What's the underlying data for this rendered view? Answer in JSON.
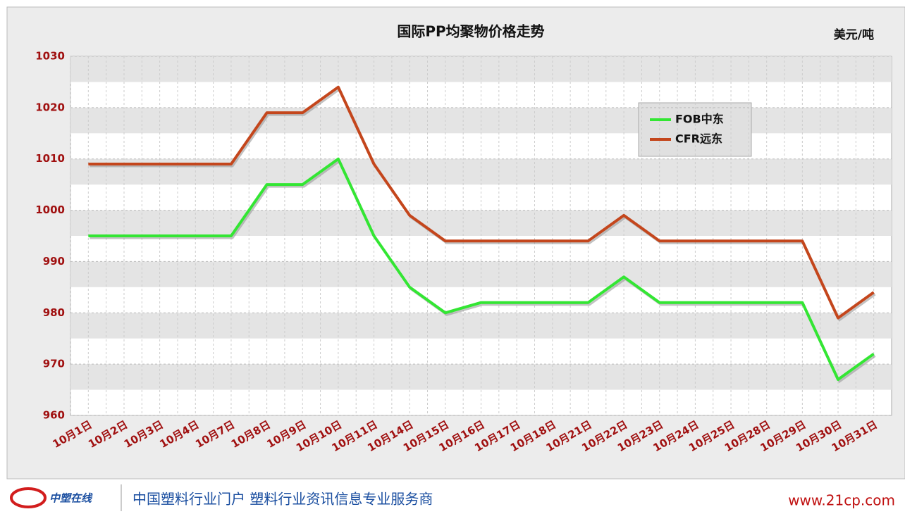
{
  "chart_data": {
    "type": "line",
    "title": "国际PP均聚物价格走势",
    "unit": "美元/吨",
    "categories": [
      "10月1日",
      "10月2日",
      "10月3日",
      "10月4日",
      "10月7日",
      "10月8日",
      "10月9日",
      "10月10日",
      "10月11日",
      "10月14日",
      "10月15日",
      "10月16日",
      "10月17日",
      "10月18日",
      "10月21日",
      "10月22日",
      "10月23日",
      "10月24日",
      "10月25日",
      "10月28日",
      "10月29日",
      "10月30日",
      "10月31日"
    ],
    "series": [
      {
        "name": "FOB中东",
        "color": "#33e633",
        "values": [
          995,
          995,
          995,
          995,
          995,
          1005,
          1005,
          1010,
          995,
          985,
          980,
          982,
          982,
          982,
          982,
          987,
          982,
          982,
          982,
          982,
          982,
          967,
          972
        ]
      },
      {
        "name": "CFR远东",
        "color": "#c4461c",
        "values": [
          1009,
          1009,
          1009,
          1009,
          1009,
          1019,
          1019,
          1024,
          1009,
          999,
          994,
          994,
          994,
          994,
          994,
          999,
          994,
          994,
          994,
          994,
          994,
          979,
          984
        ]
      }
    ],
    "ylim": [
      960,
      1030
    ],
    "yticks": [
      960,
      970,
      980,
      990,
      1000,
      1010,
      1020,
      1030
    ],
    "grid": true,
    "legend": "top-right"
  },
  "footer": {
    "slogan": "中国塑料行业门户 塑料行业资讯信息专业服务商",
    "url": "www.21cp.com",
    "logo": "中塑在线"
  }
}
